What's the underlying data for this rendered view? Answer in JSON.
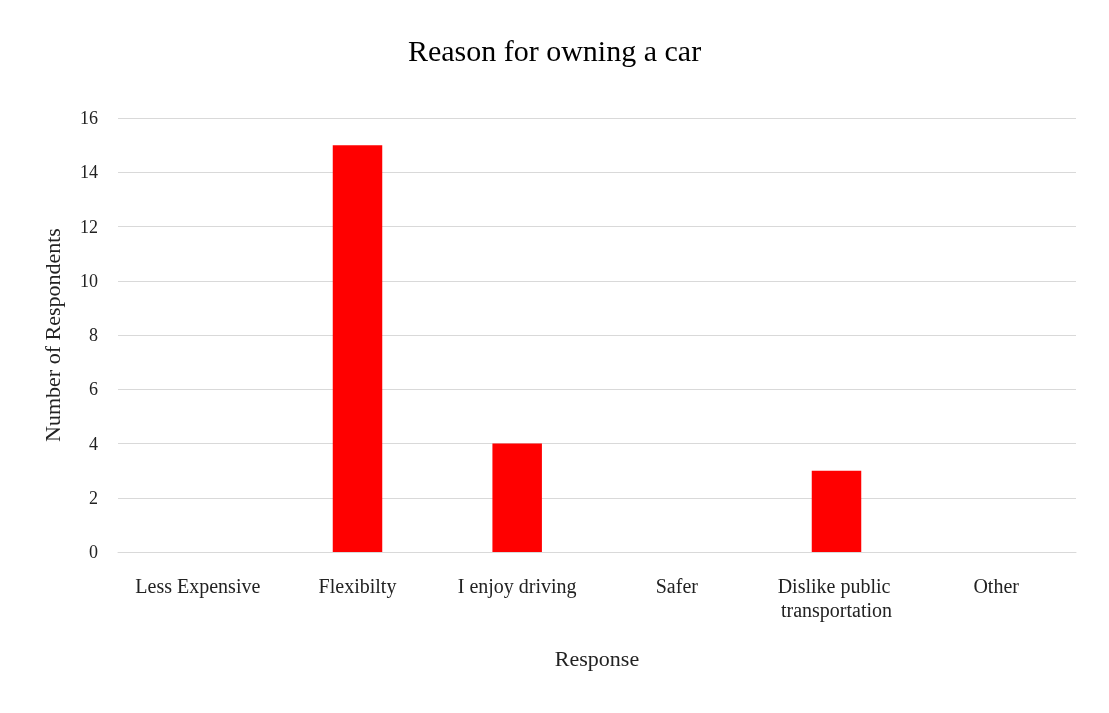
{
  "chart_data": {
    "type": "bar",
    "title": "Reason for owning a car",
    "xlabel": "Response",
    "ylabel": "Number of Respondents",
    "categories": [
      "Less Expensive",
      "Flexibilty",
      "I enjoy driving",
      "Safer",
      "Dislike public transportation",
      "Other"
    ],
    "values": [
      0,
      15,
      4,
      0,
      3,
      0
    ],
    "color": "#ff0000",
    "ylim": [
      0,
      16
    ],
    "yticks": [
      0,
      2,
      4,
      6,
      8,
      10,
      12,
      14,
      16
    ],
    "grid": "y"
  }
}
